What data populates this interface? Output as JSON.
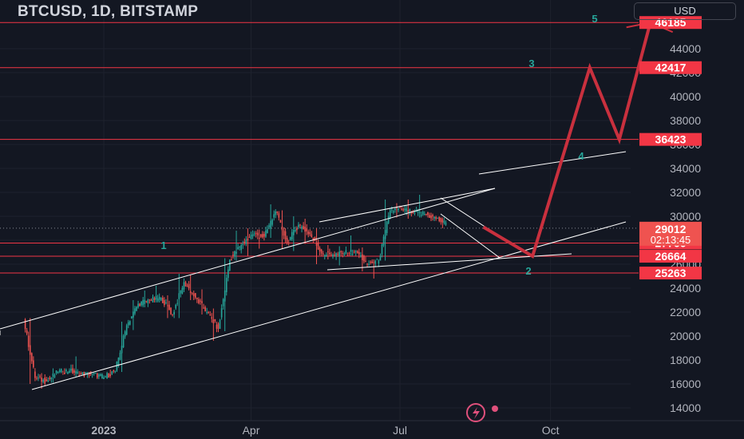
{
  "title": "BTCUSD, 1D, BITSTAMP",
  "currency_button": "USD",
  "colors": {
    "background": "#131722",
    "grid": "#1e222d",
    "axis_text": "#b2b5be",
    "up_candle": "#26a69a",
    "down_candle": "#ef5350",
    "level_line": "#f23645",
    "wave_line": "#c9303e",
    "wave_label": "#26a69a",
    "channel_line": "#ffffff",
    "price_line": "#d1d4dc"
  },
  "chart_data": {
    "type": "candlestick",
    "x_ticks": [
      "2023",
      "Apr",
      "Jul",
      "Oct"
    ],
    "y_ticks": [
      14000,
      16000,
      18000,
      20000,
      22000,
      24000,
      26000,
      28000,
      30000,
      32000,
      34000,
      36000,
      38000,
      40000,
      42000,
      44000
    ],
    "ylim": [
      13000,
      47000
    ],
    "last_price": 29012,
    "countdown": "02:13:45",
    "horizontal_levels": [
      46185,
      42417,
      36423,
      27766,
      26664,
      25263
    ],
    "price_labels": [
      {
        "value": 46185,
        "text": "46185"
      },
      {
        "value": 42417,
        "text": "42417"
      },
      {
        "value": 36423,
        "text": "36423"
      },
      {
        "value": 27766,
        "text": "27766"
      },
      {
        "value": 26664,
        "text": "26664"
      },
      {
        "value": 25263,
        "text": "25263"
      }
    ],
    "wave_labels": [
      "1",
      "2",
      "3",
      "4",
      "5"
    ],
    "wave_projection": [
      {
        "date": "2023-08-21",
        "price": 29100
      },
      {
        "date": "2023-09-20",
        "price": 26664
      },
      {
        "date": "2023-10-25",
        "price": 42417
      },
      {
        "date": "2023-11-12",
        "price": 36423
      },
      {
        "date": "2023-12-01",
        "price": 46185
      }
    ],
    "candles_weekly": [
      {
        "date": "2022-11-14",
        "o": 21400,
        "h": 21500,
        "l": 16000,
        "c": 16500
      },
      {
        "date": "2022-11-21",
        "o": 16500,
        "h": 16900,
        "l": 15600,
        "c": 16200
      },
      {
        "date": "2022-11-28",
        "o": 16200,
        "h": 17300,
        "l": 16100,
        "c": 17000
      },
      {
        "date": "2022-12-05",
        "o": 17000,
        "h": 17300,
        "l": 16900,
        "c": 17100
      },
      {
        "date": "2022-12-12",
        "o": 17100,
        "h": 18300,
        "l": 16600,
        "c": 16800
      },
      {
        "date": "2022-12-19",
        "o": 16800,
        "h": 17000,
        "l": 16500,
        "c": 16850
      },
      {
        "date": "2022-12-26",
        "o": 16850,
        "h": 16900,
        "l": 16400,
        "c": 16550
      },
      {
        "date": "2023-01-02",
        "o": 16550,
        "h": 17200,
        "l": 16500,
        "c": 17100
      },
      {
        "date": "2023-01-09",
        "o": 17100,
        "h": 21200,
        "l": 17000,
        "c": 20900
      },
      {
        "date": "2023-01-16",
        "o": 20900,
        "h": 23000,
        "l": 20500,
        "c": 22700
      },
      {
        "date": "2023-01-23",
        "o": 22700,
        "h": 23800,
        "l": 22400,
        "c": 23000
      },
      {
        "date": "2023-01-30",
        "o": 23000,
        "h": 24200,
        "l": 22800,
        "c": 23200
      },
      {
        "date": "2023-02-06",
        "o": 23200,
        "h": 23400,
        "l": 21500,
        "c": 21800
      },
      {
        "date": "2023-02-13",
        "o": 21800,
        "h": 25200,
        "l": 21500,
        "c": 24500
      },
      {
        "date": "2023-02-20",
        "o": 24500,
        "h": 25100,
        "l": 23000,
        "c": 23200
      },
      {
        "date": "2023-02-27",
        "o": 23200,
        "h": 23900,
        "l": 21800,
        "c": 22000
      },
      {
        "date": "2023-03-06",
        "o": 22000,
        "h": 22300,
        "l": 19600,
        "c": 20600
      },
      {
        "date": "2023-03-13",
        "o": 20600,
        "h": 26500,
        "l": 20400,
        "c": 26400
      },
      {
        "date": "2023-03-20",
        "o": 26400,
        "h": 28800,
        "l": 26300,
        "c": 27600
      },
      {
        "date": "2023-03-27",
        "o": 27600,
        "h": 29000,
        "l": 26700,
        "c": 28500
      },
      {
        "date": "2023-04-03",
        "o": 28500,
        "h": 28900,
        "l": 27300,
        "c": 28300
      },
      {
        "date": "2023-04-10",
        "o": 28300,
        "h": 31000,
        "l": 28200,
        "c": 30400
      },
      {
        "date": "2023-04-17",
        "o": 30400,
        "h": 30500,
        "l": 27300,
        "c": 27800
      },
      {
        "date": "2023-04-24",
        "o": 27800,
        "h": 30000,
        "l": 27100,
        "c": 29300
      },
      {
        "date": "2023-05-01",
        "o": 29300,
        "h": 29800,
        "l": 27700,
        "c": 28500
      },
      {
        "date": "2023-05-08",
        "o": 28500,
        "h": 29000,
        "l": 26000,
        "c": 26900
      },
      {
        "date": "2023-05-15",
        "o": 26900,
        "h": 27600,
        "l": 26400,
        "c": 26800
      },
      {
        "date": "2023-05-22",
        "o": 26800,
        "h": 27500,
        "l": 25900,
        "c": 26900
      },
      {
        "date": "2023-05-29",
        "o": 26900,
        "h": 28400,
        "l": 26700,
        "c": 27100
      },
      {
        "date": "2023-06-05",
        "o": 27100,
        "h": 27400,
        "l": 25400,
        "c": 26000
      },
      {
        "date": "2023-06-12",
        "o": 26000,
        "h": 26400,
        "l": 24800,
        "c": 26300
      },
      {
        "date": "2023-06-19",
        "o": 26300,
        "h": 31400,
        "l": 26300,
        "c": 30500
      },
      {
        "date": "2023-06-26",
        "o": 30500,
        "h": 31100,
        "l": 29900,
        "c": 30600
      },
      {
        "date": "2023-07-03",
        "o": 30600,
        "h": 31400,
        "l": 29800,
        "c": 30300
      },
      {
        "date": "2023-07-10",
        "o": 30300,
        "h": 31800,
        "l": 29900,
        "c": 30200
      },
      {
        "date": "2023-07-17",
        "o": 30200,
        "h": 30300,
        "l": 29600,
        "c": 29800
      },
      {
        "date": "2023-07-24",
        "o": 29800,
        "h": 29900,
        "l": 29000,
        "c": 29300
      },
      {
        "date": "2023-07-31",
        "o": 29300,
        "h": 29500,
        "l": 28600,
        "c": 29000
      },
      {
        "date": "2023-08-07",
        "o": 29000,
        "h": 30200,
        "l": 28800,
        "c": 29012
      }
    ]
  }
}
